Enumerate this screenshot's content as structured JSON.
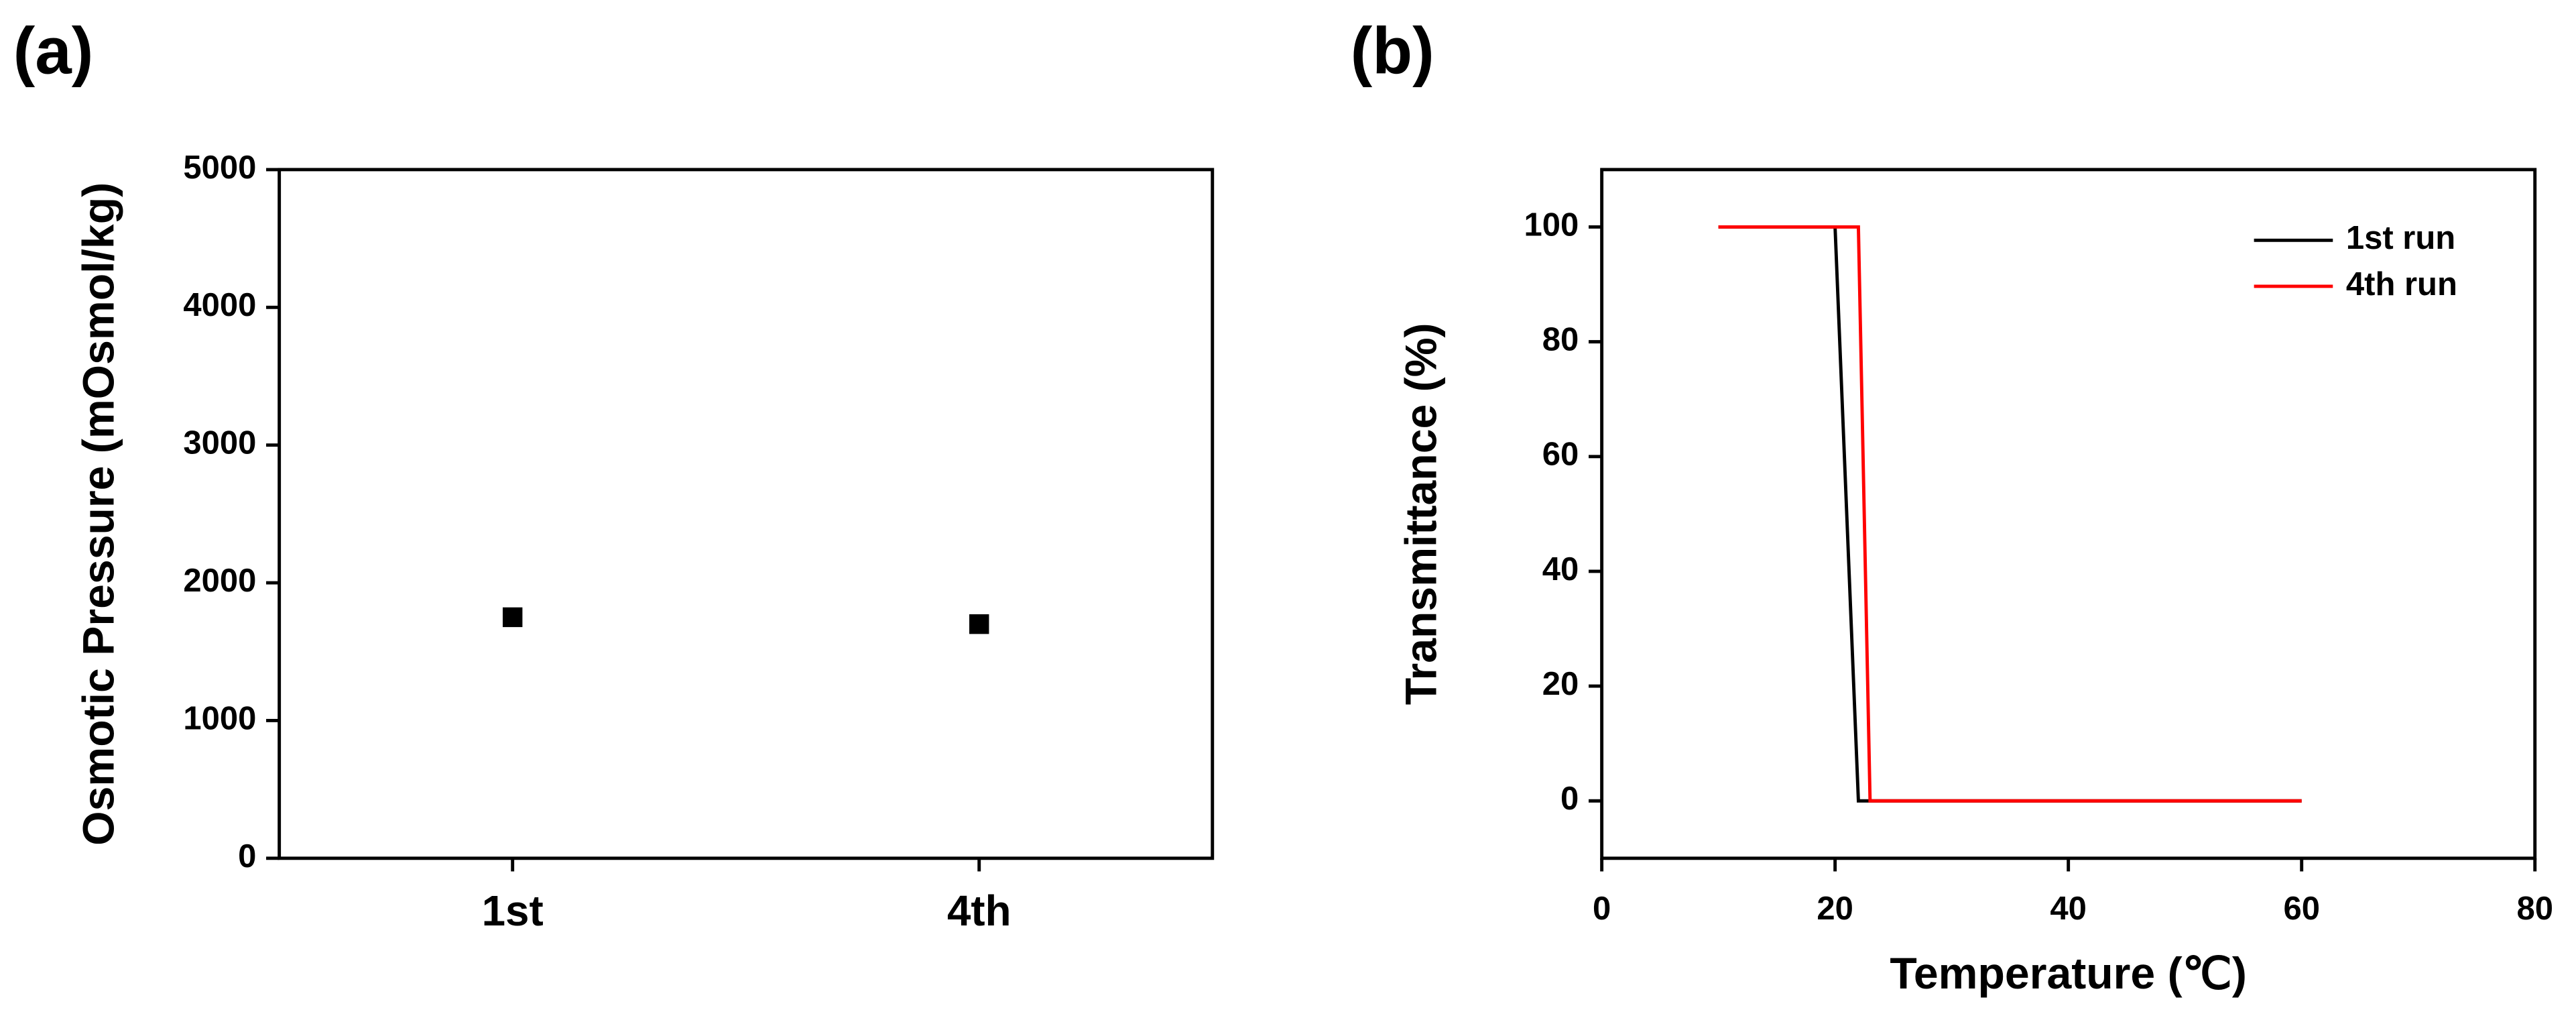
{
  "chart_data": [
    {
      "type": "scatter",
      "title": "(a)",
      "ylabel": "Osmotic Pressure (mOsmol/kg)",
      "categories": [
        "1st",
        "4th"
      ],
      "values": [
        1750,
        1700
      ],
      "color": "#000000",
      "ylim": [
        0,
        5000
      ],
      "yticks": [
        0,
        1000,
        2000,
        3000,
        4000,
        5000
      ]
    },
    {
      "type": "line",
      "title": "(b)",
      "xlabel": "Temperature (℃)",
      "ylabel": "Transmittance (%)",
      "series": [
        {
          "name": "1st run",
          "color": "#000000",
          "x": [
            10,
            20,
            22,
            60
          ],
          "values": [
            100,
            100,
            0,
            0
          ]
        },
        {
          "name": "4th run",
          "color": "#ff0000",
          "x": [
            10,
            22,
            23,
            60
          ],
          "values": [
            100,
            100,
            0,
            0
          ]
        }
      ],
      "xlim": [
        0,
        80
      ],
      "xticks": [
        0,
        20,
        40,
        60,
        80
      ],
      "ylim": [
        -10,
        110
      ],
      "yticks": [
        0,
        20,
        40,
        60,
        80,
        100
      ],
      "legend": "upper right"
    }
  ]
}
